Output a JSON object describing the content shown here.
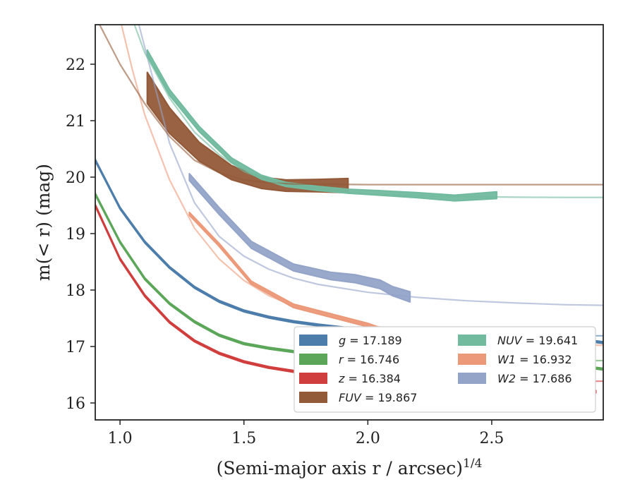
{
  "chart_data": {
    "type": "line",
    "xlabel": "(Semi-major axis r / arcsec)",
    "xlabel_superscript": "1/4",
    "ylabel": "m(< r) (mag)",
    "xlim": [
      0.9,
      2.95
    ],
    "ylim": [
      22.7,
      15.7
    ],
    "y_inverted": true,
    "grid": false,
    "x_ticks": [
      1.0,
      1.5,
      2.0,
      2.5
    ],
    "x_tick_labels": [
      "1.0",
      "1.5",
      "2.0",
      "2.5"
    ],
    "y_ticks": [
      16,
      17,
      18,
      19,
      20,
      21,
      22
    ],
    "y_tick_labels": [
      "16",
      "17",
      "18",
      "19",
      "20",
      "21",
      "22"
    ],
    "legend": {
      "placement": "lower-right",
      "columns": 2,
      "entries": [
        {
          "band": "g",
          "value": "17.189",
          "color": "#4c7dab"
        },
        {
          "band": "r",
          "value": "16.746",
          "color": "#5ca65a"
        },
        {
          "band": "z",
          "value": "16.384",
          "color": "#d03e3e"
        },
        {
          "band": "FUV",
          "value": "19.867",
          "color": "#935a39"
        },
        {
          "band": "NUV",
          "value": "19.641",
          "color": "#72bb9f"
        },
        {
          "band": "W1",
          "value": "16.932",
          "color": "#ec9979"
        },
        {
          "band": "W2",
          "value": "17.686",
          "color": "#94a4c9"
        }
      ]
    },
    "series": [
      {
        "name": "g",
        "color": "#4c7dab",
        "model_total": 17.189,
        "model": {
          "x": [
            0.9,
            1.0,
            1.1,
            1.2,
            1.3,
            1.4,
            1.5,
            1.6,
            1.7,
            1.8,
            1.9,
            2.0,
            2.2,
            2.4,
            2.6,
            2.8,
            2.95
          ],
          "y": [
            20.3,
            19.45,
            18.85,
            18.4,
            18.05,
            17.8,
            17.63,
            17.52,
            17.44,
            17.38,
            17.33,
            17.29,
            17.24,
            17.21,
            17.2,
            17.19,
            17.19
          ]
        },
        "data": {
          "x": [
            0.9,
            1.0,
            1.1,
            1.2,
            1.3,
            1.4,
            1.5,
            1.6,
            1.7,
            1.8,
            1.9,
            2.0,
            2.2,
            2.4,
            2.6,
            2.8,
            2.95
          ],
          "y": [
            20.3,
            19.45,
            18.85,
            18.4,
            18.05,
            17.8,
            17.63,
            17.52,
            17.44,
            17.38,
            17.33,
            17.29,
            17.24,
            17.22,
            17.2,
            17.15,
            17.07
          ],
          "width": [
            0.03,
            0.03,
            0.03,
            0.03,
            0.03,
            0.03,
            0.03,
            0.03,
            0.03,
            0.03,
            0.03,
            0.03,
            0.03,
            0.03,
            0.03,
            0.03,
            0.03
          ]
        }
      },
      {
        "name": "r",
        "color": "#5ca65a",
        "model_total": 16.746,
        "model": {
          "x": [
            0.9,
            1.0,
            1.1,
            1.2,
            1.3,
            1.4,
            1.5,
            1.6,
            1.7,
            1.8,
            1.9,
            2.0,
            2.2,
            2.4,
            2.6,
            2.8,
            2.95
          ],
          "y": [
            19.7,
            18.85,
            18.2,
            17.76,
            17.44,
            17.2,
            17.05,
            16.97,
            16.91,
            16.87,
            16.84,
            16.82,
            16.79,
            16.77,
            16.76,
            16.75,
            16.75
          ]
        },
        "data": {
          "x": [
            0.9,
            1.0,
            1.1,
            1.2,
            1.3,
            1.4,
            1.5,
            1.6,
            1.7,
            1.8,
            1.9,
            1.93,
            2.0,
            2.2,
            2.4,
            2.6,
            2.8,
            2.95
          ],
          "y": [
            19.7,
            18.85,
            18.2,
            17.76,
            17.44,
            17.2,
            17.05,
            16.97,
            16.91,
            16.88,
            16.88,
            16.85,
            16.87,
            16.8,
            16.78,
            16.74,
            16.68,
            16.6
          ],
          "width": [
            0.03,
            0.03,
            0.03,
            0.03,
            0.03,
            0.03,
            0.03,
            0.03,
            0.03,
            0.03,
            0.03,
            0.03,
            0.03,
            0.03,
            0.03,
            0.03,
            0.03,
            0.03
          ]
        }
      },
      {
        "name": "z",
        "color": "#d03e3e",
        "model_total": 16.384,
        "model": {
          "x": [
            0.9,
            1.0,
            1.1,
            1.2,
            1.3,
            1.4,
            1.5,
            1.6,
            1.7,
            1.8,
            1.9,
            2.0,
            2.2,
            2.4,
            2.6,
            2.8,
            2.95
          ],
          "y": [
            19.5,
            18.55,
            17.9,
            17.43,
            17.1,
            16.88,
            16.73,
            16.63,
            16.56,
            16.51,
            16.47,
            16.45,
            16.42,
            16.4,
            16.39,
            16.385,
            16.385
          ]
        },
        "data": {
          "x": [
            0.9,
            1.0,
            1.1,
            1.2,
            1.3,
            1.4,
            1.5,
            1.6,
            1.7,
            1.8,
            1.9,
            1.95,
            2.0,
            2.2,
            2.4,
            2.6,
            2.8,
            2.92
          ],
          "y": [
            19.5,
            18.55,
            17.9,
            17.43,
            17.1,
            16.88,
            16.73,
            16.63,
            16.56,
            16.53,
            16.52,
            16.53,
            16.52,
            16.44,
            16.4,
            16.32,
            16.28,
            16.2
          ],
          "width": [
            0.03,
            0.03,
            0.03,
            0.03,
            0.03,
            0.03,
            0.03,
            0.03,
            0.03,
            0.03,
            0.03,
            0.03,
            0.03,
            0.03,
            0.03,
            0.03,
            0.03,
            0.04
          ]
        }
      },
      {
        "name": "W1",
        "color": "#ec9979",
        "model_total": 16.932,
        "model": {
          "x": [
            1.0,
            1.05,
            1.1,
            1.2,
            1.3,
            1.4,
            1.5,
            1.6,
            1.7,
            1.8,
            2.0,
            2.2,
            2.4,
            2.6,
            2.8,
            2.95
          ],
          "y": [
            22.8,
            21.9,
            21.1,
            19.95,
            19.1,
            18.55,
            18.17,
            17.9,
            17.72,
            17.58,
            17.38,
            17.24,
            17.15,
            17.08,
            17.04,
            17.02
          ]
        },
        "data": {
          "x": [
            1.28,
            1.4,
            1.53,
            1.7,
            1.85,
            2.0,
            2.1,
            2.2,
            2.3,
            2.4,
            2.53
          ],
          "y": [
            19.35,
            18.8,
            18.13,
            17.72,
            17.55,
            17.38,
            17.22,
            17.17,
            17.16,
            17.16,
            17.13
          ],
          "width": [
            0.05,
            0.05,
            0.05,
            0.06,
            0.06,
            0.06,
            0.07,
            0.08,
            0.1,
            0.12,
            0.15
          ]
        }
      },
      {
        "name": "W2",
        "color": "#94a4c9",
        "model_total": 17.686,
        "model": {
          "x": [
            1.07,
            1.1,
            1.2,
            1.3,
            1.4,
            1.5,
            1.6,
            1.7,
            1.8,
            2.0,
            2.2,
            2.4,
            2.6,
            2.8,
            2.95
          ],
          "y": [
            22.8,
            22.3,
            20.6,
            19.55,
            18.95,
            18.6,
            18.37,
            18.21,
            18.1,
            17.96,
            17.87,
            17.81,
            17.77,
            17.74,
            17.73
          ]
        },
        "data": {
          "x": [
            1.28,
            1.4,
            1.53,
            1.7,
            1.85,
            1.95,
            2.05,
            2.1,
            2.17
          ],
          "y": [
            20.0,
            19.4,
            18.8,
            18.4,
            18.25,
            18.2,
            18.1,
            17.98,
            17.88
          ],
          "width": [
            0.12,
            0.12,
            0.12,
            0.12,
            0.13,
            0.14,
            0.15,
            0.16,
            0.18
          ]
        }
      },
      {
        "name": "FUV",
        "color": "#935a39",
        "model_total": 19.867,
        "model": {
          "x": [
            0.9,
            1.0,
            1.1,
            1.2,
            1.3,
            1.4,
            1.5,
            1.6,
            1.7,
            2.0,
            2.5,
            2.95
          ],
          "y": [
            22.85,
            22.0,
            21.3,
            20.72,
            20.3,
            20.08,
            19.95,
            19.9,
            19.88,
            19.867,
            19.867,
            19.867
          ]
        },
        "data": {
          "x": [
            1.11,
            1.2,
            1.32,
            1.45,
            1.57,
            1.67,
            1.8,
            1.92
          ],
          "y": [
            21.58,
            21.0,
            20.45,
            20.08,
            19.9,
            19.85,
            19.85,
            19.85
          ],
          "width": [
            0.55,
            0.45,
            0.33,
            0.25,
            0.2,
            0.2,
            0.22,
            0.25
          ]
        }
      },
      {
        "name": "NUV",
        "color": "#72bb9f",
        "model_total": 19.641,
        "model": {
          "x": [
            1.05,
            1.1,
            1.2,
            1.3,
            1.4,
            1.5,
            1.6,
            1.7,
            1.8,
            2.0,
            2.2,
            2.4,
            2.6,
            2.8,
            2.95
          ],
          "y": [
            22.8,
            22.2,
            21.4,
            20.8,
            20.4,
            20.1,
            19.93,
            19.82,
            19.76,
            19.7,
            19.67,
            19.655,
            19.645,
            19.641,
            19.641
          ]
        },
        "data": {
          "x": [
            1.11,
            1.2,
            1.32,
            1.45,
            1.57,
            1.67,
            1.8,
            1.92,
            2.05,
            2.2,
            2.35,
            2.52
          ],
          "y": [
            22.2,
            21.5,
            20.85,
            20.3,
            20.0,
            19.87,
            19.8,
            19.75,
            19.72,
            19.68,
            19.63,
            19.68
          ],
          "width": [
            0.1,
            0.1,
            0.09,
            0.08,
            0.07,
            0.07,
            0.07,
            0.07,
            0.08,
            0.09,
            0.1,
            0.12
          ]
        }
      }
    ]
  }
}
